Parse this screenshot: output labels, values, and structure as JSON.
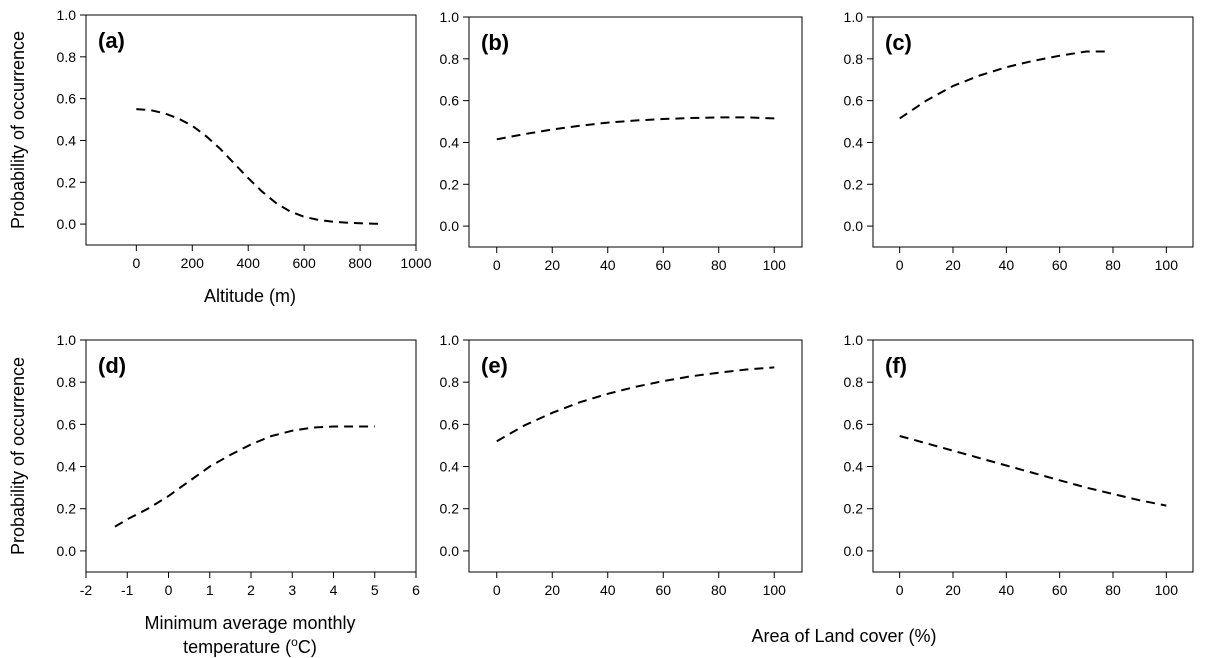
{
  "figure": {
    "ylabel_top": "Probability of occurrence",
    "ylabel_bottom": "Probability of occurrence",
    "xlabel_a": "Altitude (m)",
    "xlabel_d_line1": "Minimum average monthly",
    "xlabel_d_line2": "temperature (",
    "xlabel_d_deg": "o",
    "xlabel_d_end": "C)",
    "xlabel_shared": "Area of Land cover (%)",
    "line_color": "#000000"
  },
  "chart_data": [
    {
      "panel": "(a)",
      "type": "line",
      "xlim": [
        -180,
        1000
      ],
      "ylim": [
        -0.1,
        1.0
      ],
      "xticks": [
        0,
        200,
        400,
        600,
        800,
        1000
      ],
      "yticks": [
        0.0,
        0.2,
        0.4,
        0.6,
        0.8,
        1.0
      ],
      "ytick_labels": [
        "0.0",
        "0.2",
        "0.4",
        "0.6",
        "0.8",
        "1.0"
      ],
      "x": [
        0,
        50,
        100,
        150,
        200,
        250,
        300,
        350,
        400,
        450,
        500,
        550,
        600,
        650,
        700,
        750,
        800,
        850,
        880
      ],
      "y": [
        0.55,
        0.545,
        0.53,
        0.505,
        0.47,
        0.42,
        0.36,
        0.29,
        0.22,
        0.155,
        0.1,
        0.06,
        0.035,
        0.02,
        0.012,
        0.007,
        0.004,
        0.002,
        0.002
      ]
    },
    {
      "panel": "(b)",
      "type": "line",
      "xlim": [
        -10,
        110
      ],
      "ylim": [
        -0.1,
        1.0
      ],
      "xticks": [
        0,
        20,
        40,
        60,
        80,
        100
      ],
      "yticks": [
        0.0,
        0.2,
        0.4,
        0.6,
        0.8,
        1.0
      ],
      "ytick_labels": [
        "0.0",
        "0.2",
        "0.4",
        "0.6",
        "0.8",
        "1.0"
      ],
      "x": [
        0,
        10,
        20,
        30,
        40,
        50,
        60,
        70,
        80,
        90,
        100
      ],
      "y": [
        0.415,
        0.44,
        0.462,
        0.48,
        0.495,
        0.505,
        0.512,
        0.517,
        0.52,
        0.52,
        0.515
      ]
    },
    {
      "panel": "(c)",
      "type": "line",
      "xlim": [
        -10,
        110
      ],
      "ylim": [
        -0.1,
        1.0
      ],
      "xticks": [
        0,
        20,
        40,
        60,
        80,
        100
      ],
      "yticks": [
        0.0,
        0.2,
        0.4,
        0.6,
        0.8,
        1.0
      ],
      "ytick_labels": [
        "0.0",
        "0.2",
        "0.4",
        "0.6",
        "0.8",
        "1.0"
      ],
      "x": [
        0,
        10,
        20,
        30,
        40,
        50,
        60,
        70,
        78
      ],
      "y": [
        0.515,
        0.6,
        0.67,
        0.72,
        0.76,
        0.79,
        0.815,
        0.835,
        0.835
      ]
    },
    {
      "panel": "(d)",
      "type": "line",
      "xlim": [
        -2,
        6
      ],
      "ylim": [
        -0.1,
        1.0
      ],
      "xticks": [
        -2,
        -1,
        0,
        1,
        2,
        3,
        4,
        5,
        6
      ],
      "yticks": [
        0.0,
        0.2,
        0.4,
        0.6,
        0.8,
        1.0
      ],
      "ytick_labels": [
        "0.0",
        "0.2",
        "0.4",
        "0.6",
        "0.8",
        "1.0"
      ],
      "x": [
        -1.3,
        -1.0,
        -0.5,
        0.0,
        0.5,
        1.0,
        1.5,
        2.0,
        2.5,
        3.0,
        3.5,
        4.0,
        4.5,
        5.0
      ],
      "y": [
        0.115,
        0.15,
        0.2,
        0.26,
        0.33,
        0.4,
        0.455,
        0.505,
        0.545,
        0.57,
        0.585,
        0.59,
        0.59,
        0.59
      ]
    },
    {
      "panel": "(e)",
      "type": "line",
      "xlim": [
        -10,
        110
      ],
      "ylim": [
        -0.1,
        1.0
      ],
      "xticks": [
        0,
        20,
        40,
        60,
        80,
        100
      ],
      "yticks": [
        0.0,
        0.2,
        0.4,
        0.6,
        0.8,
        1.0
      ],
      "ytick_labels": [
        "0.0",
        "0.2",
        "0.4",
        "0.6",
        "0.8",
        "1.0"
      ],
      "x": [
        0,
        10,
        20,
        30,
        40,
        50,
        60,
        70,
        80,
        90,
        100
      ],
      "y": [
        0.52,
        0.595,
        0.655,
        0.705,
        0.745,
        0.778,
        0.805,
        0.828,
        0.845,
        0.86,
        0.87
      ]
    },
    {
      "panel": "(f)",
      "type": "line",
      "xlim": [
        -10,
        110
      ],
      "ylim": [
        -0.1,
        1.0
      ],
      "xticks": [
        0,
        20,
        40,
        60,
        80,
        100
      ],
      "yticks": [
        0.0,
        0.2,
        0.4,
        0.6,
        0.8,
        1.0
      ],
      "ytick_labels": [
        "0.0",
        "0.2",
        "0.4",
        "0.6",
        "0.8",
        "1.0"
      ],
      "x": [
        0,
        10,
        20,
        30,
        40,
        50,
        60,
        70,
        80,
        90,
        100
      ],
      "y": [
        0.545,
        0.51,
        0.475,
        0.44,
        0.405,
        0.37,
        0.335,
        0.3,
        0.27,
        0.24,
        0.215
      ]
    }
  ]
}
